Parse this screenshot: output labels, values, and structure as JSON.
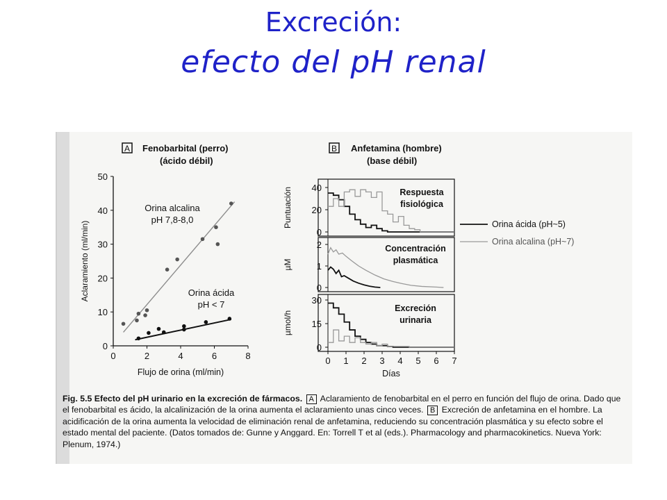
{
  "slide": {
    "title_line1": "Excreción:",
    "title_line2": "efecto del pH renal"
  },
  "chart_data": [
    {
      "panel": "A",
      "type": "scatter",
      "title": "Fenobarbital (perro)",
      "subtitle": "(ácido débil)",
      "xlabel": "Flujo de orina (ml/min)",
      "ylabel": "Aclaramiento (ml/min)",
      "xlim": [
        0,
        8
      ],
      "ylim": [
        0,
        50
      ],
      "xticks": [
        0,
        2,
        4,
        6,
        8
      ],
      "yticks": [
        0,
        10,
        20,
        30,
        40,
        50
      ],
      "annotations": [
        {
          "lines": [
            "Orina alcalina",
            "pH 7,8-8,0"
          ]
        },
        {
          "lines": [
            "Orina ácida",
            "pH < 7"
          ]
        }
      ],
      "series": [
        {
          "color": "#8c8c8c",
          "points": [
            [
              0.6,
              6.5
            ],
            [
              1.4,
              7.5
            ],
            [
              1.5,
              9.5
            ],
            [
              1.9,
              9
            ],
            [
              2,
              10.5
            ],
            [
              3.2,
              22.5
            ],
            [
              3.8,
              25.5
            ],
            [
              5.3,
              31.5
            ],
            [
              6.1,
              35
            ],
            [
              6.2,
              30
            ],
            [
              7,
              42
            ]
          ],
          "fit": [
            [
              0.6,
              4
            ],
            [
              7.2,
              42.5
            ]
          ]
        },
        {
          "color": "#111111",
          "points": [
            [
              1.5,
              2.2
            ],
            [
              2.1,
              3.8
            ],
            [
              2.7,
              5
            ],
            [
              3,
              4
            ],
            [
              4.2,
              5.8
            ],
            [
              4.2,
              4.8
            ],
            [
              5.5,
              7
            ],
            [
              6.9,
              8
            ]
          ],
          "fit": [
            [
              1.3,
              1.8
            ],
            [
              7,
              7.8
            ]
          ]
        }
      ]
    },
    {
      "panel": "B",
      "type": "line",
      "title": "Anfetamina (hombre)",
      "subtitle": "(base débil)",
      "xlabel": "Días",
      "xlim": [
        0,
        7
      ],
      "xticks": [
        0,
        1,
        2,
        3,
        4,
        5,
        6,
        7
      ],
      "legend": [
        {
          "name": "Orina ácida (pH~5)",
          "color": "#111111"
        },
        {
          "name": "Orina alcalina (pH~7)",
          "color": "#999999"
        }
      ],
      "subplots": [
        {
          "label": "Respuesta fisiológica",
          "label_lines": [
            "Respuesta",
            "fisiológica"
          ],
          "ylabel": "Puntuación",
          "ylim": [
            0,
            40
          ],
          "yticks": [
            0,
            20,
            40
          ],
          "style": "step",
          "series": [
            {
              "color": "#111111",
              "steps": [
                [
                  0,
                  35
                ],
                [
                  0.3,
                  33
                ],
                [
                  0.6,
                  29
                ],
                [
                  0.9,
                  23
                ],
                [
                  1.2,
                  16
                ],
                [
                  1.5,
                  11
                ],
                [
                  1.8,
                  7
                ],
                [
                  2.1,
                  4
                ],
                [
                  2.4,
                  6
                ],
                [
                  2.7,
                  3
                ],
                [
                  3,
                  1
                ],
                [
                  3.3,
                  0
                ],
                [
                  7,
                  0
                ]
              ]
            },
            {
              "color": "#999999",
              "steps": [
                [
                  0,
                  23
                ],
                [
                  0.3,
                  30
                ],
                [
                  0.6,
                  23
                ],
                [
                  0.9,
                  36
                ],
                [
                  1.2,
                  38
                ],
                [
                  1.5,
                  32
                ],
                [
                  1.8,
                  38
                ],
                [
                  2.1,
                  36
                ],
                [
                  2.4,
                  31
                ],
                [
                  2.7,
                  36
                ],
                [
                  3,
                  19
                ],
                [
                  3.3,
                  16
                ],
                [
                  3.6,
                  9
                ],
                [
                  3.9,
                  14
                ],
                [
                  4.2,
                  6
                ],
                [
                  4.5,
                  3
                ],
                [
                  4.8,
                  2
                ],
                [
                  5.1,
                  0
                ],
                [
                  7,
                  0
                ]
              ]
            }
          ]
        },
        {
          "label": "Concentración plasmática",
          "label_lines": [
            "Concentración",
            "plasmática"
          ],
          "ylabel": "µM",
          "ylim": [
            0,
            2
          ],
          "yticks": [
            0,
            1,
            2
          ],
          "style": "line",
          "series": [
            {
              "color": "#111111",
              "points": [
                [
                  0,
                  0.8
                ],
                [
                  0.15,
                  0.95
                ],
                [
                  0.3,
                  0.85
                ],
                [
                  0.45,
                  0.65
                ],
                [
                  0.6,
                  0.8
                ],
                [
                  0.75,
                  0.5
                ],
                [
                  0.9,
                  0.55
                ],
                [
                  1.1,
                  0.45
                ],
                [
                  1.4,
                  0.3
                ],
                [
                  1.7,
                  0.2
                ],
                [
                  2.0,
                  0.12
                ],
                [
                  2.3,
                  0.06
                ],
                [
                  2.6,
                  0.02
                ],
                [
                  2.9,
                  0
                ]
              ]
            },
            {
              "color": "#999999",
              "points": [
                [
                  0,
                  1.55
                ],
                [
                  0.15,
                  1.85
                ],
                [
                  0.3,
                  1.65
                ],
                [
                  0.45,
                  1.75
                ],
                [
                  0.6,
                  1.55
                ],
                [
                  0.8,
                  1.6
                ],
                [
                  1.0,
                  1.45
                ],
                [
                  1.3,
                  1.25
                ],
                [
                  1.7,
                  1.0
                ],
                [
                  2.1,
                  0.8
                ],
                [
                  2.6,
                  0.58
                ],
                [
                  3.1,
                  0.4
                ],
                [
                  3.6,
                  0.28
                ],
                [
                  4.1,
                  0.18
                ],
                [
                  4.6,
                  0.1
                ],
                [
                  5.2,
                  0.05
                ],
                [
                  6.0,
                  0.02
                ],
                [
                  6.4,
                  0
                ]
              ]
            }
          ]
        },
        {
          "label": "Excreción urinaria",
          "label_lines": [
            "Excreción",
            "urinaria"
          ],
          "ylabel": "µmol/h",
          "ylim": [
            0,
            30
          ],
          "yticks": [
            0,
            15,
            30
          ],
          "style": "step",
          "series": [
            {
              "color": "#111111",
              "steps": [
                [
                  0,
                  28
                ],
                [
                  0.3,
                  25
                ],
                [
                  0.6,
                  21
                ],
                [
                  0.9,
                  16
                ],
                [
                  1.2,
                  11
                ],
                [
                  1.5,
                  7
                ],
                [
                  1.8,
                  5
                ],
                [
                  2.1,
                  3
                ],
                [
                  2.4,
                  2
                ],
                [
                  2.7,
                  1
                ],
                [
                  3.0,
                  1
                ],
                [
                  3.3,
                  0.5
                ],
                [
                  3.6,
                  0
                ],
                [
                  7,
                  0
                ]
              ]
            },
            {
              "color": "#999999",
              "steps": [
                [
                  0,
                  3
                ],
                [
                  0.3,
                  11
                ],
                [
                  0.6,
                  4
                ],
                [
                  0.9,
                  7
                ],
                [
                  1.2,
                  3
                ],
                [
                  1.5,
                  6
                ],
                [
                  1.8,
                  3
                ],
                [
                  2.1,
                  2
                ],
                [
                  2.4,
                  3
                ],
                [
                  2.7,
                  1
                ],
                [
                  3.0,
                  2
                ],
                [
                  3.3,
                  0.5
                ],
                [
                  3.9,
                  0.5
                ],
                [
                  4.5,
                  0
                ],
                [
                  7,
                  0
                ]
              ]
            }
          ]
        }
      ]
    }
  ],
  "caption": {
    "fig": "Fig. 5.5",
    "title": "Efecto del pH urinario en la excreción de fármacos.",
    "box_a": "A",
    "part_a_1": "Aclaramiento de fenobarbital en el perro en función del flujo de orina.",
    "part_a_2": "Dado que el fenobarbital es ácido, la alcalinización de la orina aumenta el aclaramiento unas cinco veces.",
    "box_b": "B",
    "part_b": "Excreción de anfetamina en el hombre. La acidificación de la orina aumenta la velocidad de eliminación renal de anfetamina, reduciendo su concentración plasmática y su efecto sobre el estado mental del paciente. (Datos tomados de: Gunne y Anggard. En: Torrell T et al (eds.). Pharmacology and pharmacokinetics. Nueva York: Plenum, 1974.)"
  }
}
